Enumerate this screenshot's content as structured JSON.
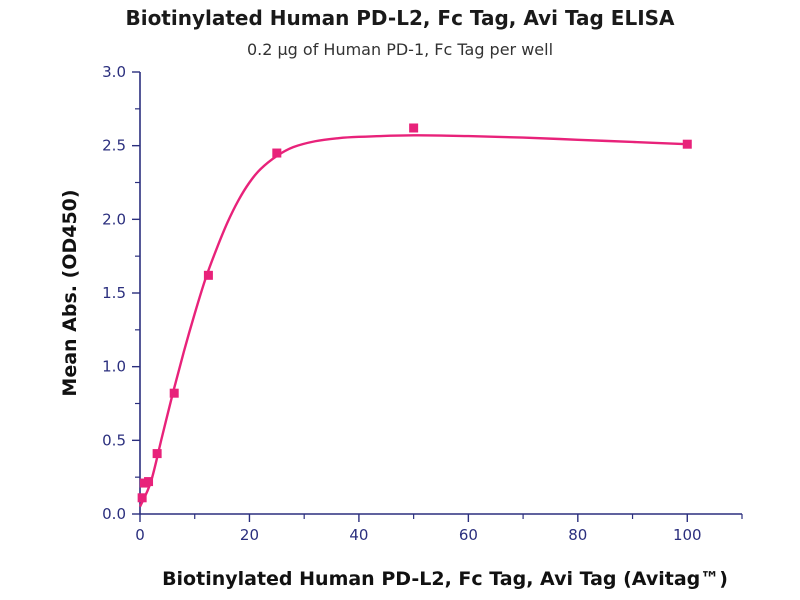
{
  "chart_data": {
    "type": "scatter",
    "title": "Biotinylated Human PD-L2, Fc Tag, Avi Tag ELISA",
    "subtitle": "0.2 µg of Human PD-1, Fc Tag per well",
    "xlabel": "Biotinylated Human PD-L2, Fc Tag, Avi Tag (Avitag™)",
    "ylabel": "Mean Abs. (OD450)",
    "xlim": [
      0,
      110
    ],
    "ylim": [
      0,
      3.0
    ],
    "x_ticks": [
      0,
      20,
      40,
      60,
      80,
      100
    ],
    "y_ticks": [
      0.0,
      0.5,
      1.0,
      1.5,
      2.0,
      2.5,
      3.0
    ],
    "x_tick_labels": [
      "0",
      "20",
      "40",
      "60",
      "80",
      "100"
    ],
    "y_tick_labels": [
      "0.0",
      "0.5",
      "1.0",
      "1.5",
      "2.0",
      "2.5",
      "3.0"
    ],
    "grid": false,
    "legend": "none",
    "series": [
      {
        "points": [
          {
            "x": 0.39,
            "y": 0.11
          },
          {
            "x": 0.78,
            "y": 0.21
          },
          {
            "x": 1.56,
            "y": 0.22
          },
          {
            "x": 3.13,
            "y": 0.41
          },
          {
            "x": 6.25,
            "y": 0.82
          },
          {
            "x": 12.5,
            "y": 1.62
          },
          {
            "x": 25,
            "y": 2.45
          },
          {
            "x": 50,
            "y": 2.62
          },
          {
            "x": 100,
            "y": 2.51
          }
        ],
        "fit_curve": [
          {
            "x": 0,
            "y": 0.05
          },
          {
            "x": 2,
            "y": 0.22
          },
          {
            "x": 4,
            "y": 0.52
          },
          {
            "x": 6,
            "y": 0.82
          },
          {
            "x": 8,
            "y": 1.1
          },
          {
            "x": 10,
            "y": 1.36
          },
          {
            "x": 12,
            "y": 1.6
          },
          {
            "x": 14,
            "y": 1.8
          },
          {
            "x": 16,
            "y": 1.98
          },
          {
            "x": 18,
            "y": 2.13
          },
          {
            "x": 20,
            "y": 2.25
          },
          {
            "x": 22,
            "y": 2.34
          },
          {
            "x": 25,
            "y": 2.43
          },
          {
            "x": 28,
            "y": 2.49
          },
          {
            "x": 32,
            "y": 2.53
          },
          {
            "x": 36,
            "y": 2.55
          },
          {
            "x": 40,
            "y": 2.56
          },
          {
            "x": 50,
            "y": 2.57
          },
          {
            "x": 60,
            "y": 2.565
          },
          {
            "x": 70,
            "y": 2.555
          },
          {
            "x": 80,
            "y": 2.54
          },
          {
            "x": 90,
            "y": 2.525
          },
          {
            "x": 100,
            "y": 2.51
          }
        ]
      }
    ],
    "colors": {
      "series": "#e8227a",
      "axis": "#2b2f7e"
    }
  }
}
